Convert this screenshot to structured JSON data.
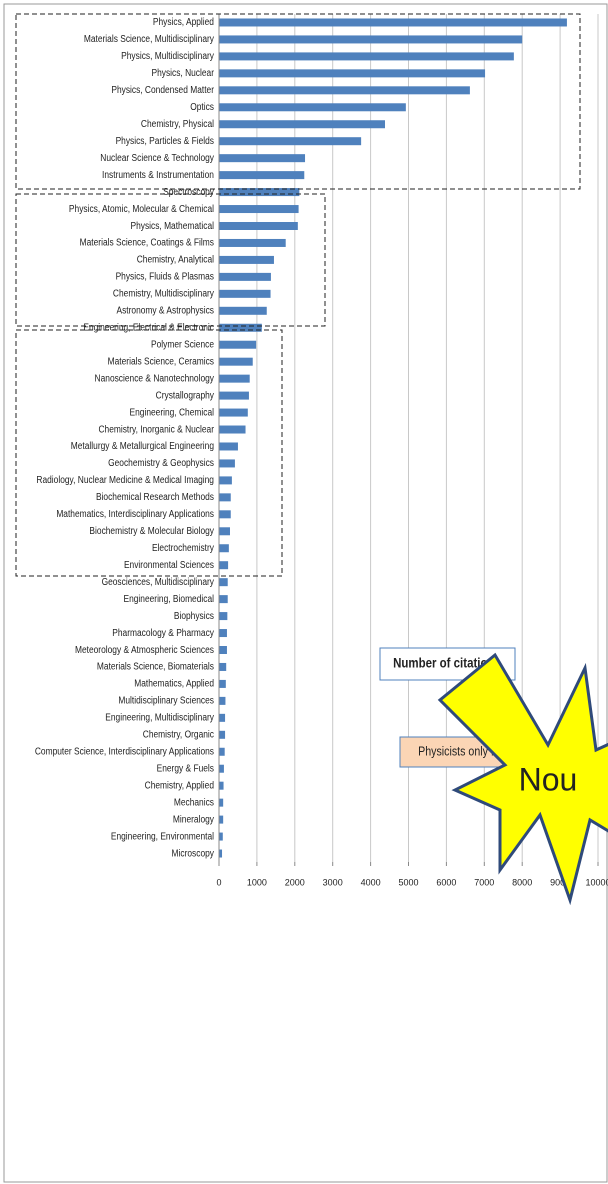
{
  "chart_data": {
    "type": "barh",
    "categories": [
      "Physics, Applied",
      "Materials Science, Multidisciplinary",
      "Physics, Multidisciplinary",
      "Physics, Nuclear",
      "Physics, Condensed Matter",
      "Optics",
      "Chemistry, Physical",
      "Physics, Particles & Fields",
      "Nuclear Science & Technology",
      "Instruments & Instrumentation",
      "Spectroscopy",
      "Physics, Atomic, Molecular & Chemical",
      "Physics, Mathematical",
      "Materials Science, Coatings & Films",
      "Chemistry, Analytical",
      "Physics, Fluids & Plasmas",
      "Chemistry, Multidisciplinary",
      "Astronomy & Astrophysics",
      "Engineering, Electrical & Electronic",
      "Polymer Science",
      "Materials Science, Ceramics",
      "Nanoscience & Nanotechnology",
      "Crystallography",
      "Engineering, Chemical",
      "Chemistry, Inorganic & Nuclear",
      "Metallurgy & Metallurgical Engineering",
      "Geochemistry & Geophysics",
      "Radiology, Nuclear Medicine & Medical Imaging",
      "Biochemical Research Methods",
      "Mathematics, Interdisciplinary Applications",
      "Biochemistry & Molecular Biology",
      "Electrochemistry",
      "Environmental Sciences",
      "Geosciences, Multidisciplinary",
      "Engineering, Biomedical",
      "Biophysics",
      "Pharmacology & Pharmacy",
      "Meteorology & Atmospheric Sciences",
      "Materials Science, Biomaterials",
      "Mathematics, Applied",
      "Multidisciplinary Sciences",
      "Engineering, Multidisciplinary",
      "Chemistry, Organic",
      "Computer Science, Interdisciplinary Applications",
      "Energy & Fuels",
      "Chemistry, Applied",
      "Mechanics",
      "Mineralogy",
      "Engineering, Environmental",
      "Microscopy"
    ],
    "values": [
      9180,
      8000,
      7780,
      7020,
      6620,
      4930,
      4380,
      3750,
      2270,
      2250,
      2120,
      2100,
      2080,
      1760,
      1450,
      1370,
      1360,
      1260,
      1130,
      980,
      890,
      810,
      790,
      760,
      700,
      500,
      420,
      340,
      310,
      310,
      290,
      260,
      240,
      230,
      230,
      220,
      210,
      210,
      190,
      180,
      170,
      160,
      160,
      150,
      130,
      120,
      110,
      110,
      100,
      80
    ],
    "color": "#4f81bd",
    "xlim": [
      0,
      10000
    ],
    "xticks": [
      0,
      1000,
      2000,
      3000,
      4000,
      5000,
      6000,
      7000,
      8000,
      9000,
      10000
    ],
    "grid": true,
    "annotations": [
      "Number of citations",
      "Physicists only !"
    ],
    "callout": "Nou"
  }
}
